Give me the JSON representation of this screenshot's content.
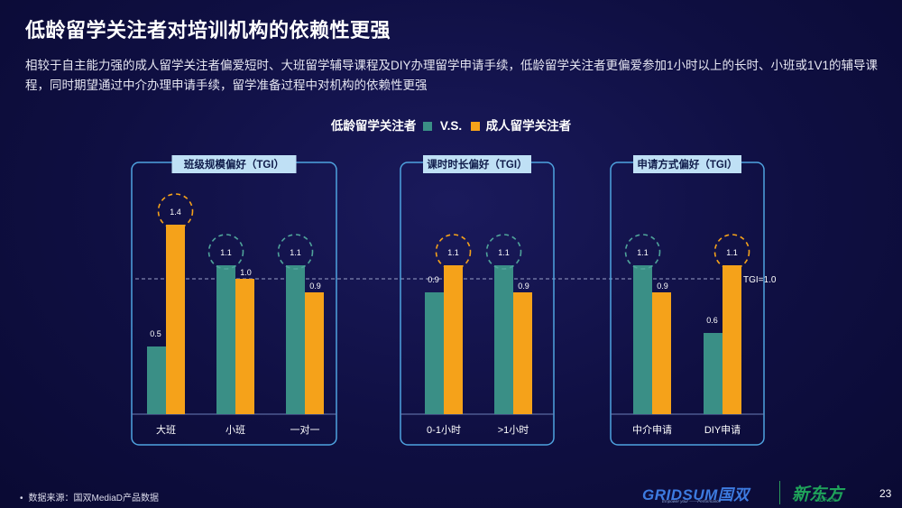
{
  "title": "低龄留学关注者对培训机构的依赖性更强",
  "subtitle": "相较于自主能力强的成人留学关注者偏爱短时、大班留学辅导课程及DIY办理留学申请手续，低龄留学关注者更偏爱参加1小时以上的长时、小班或1V1的辅导课程，同时期望通过中介办理申请手续，留学准备过程中对机构的依赖性更强",
  "legend": {
    "series_a": "低龄留学关注者",
    "vs": "V.S.",
    "series_b": "成人留学关注者"
  },
  "colors": {
    "series_a": "#3a8f86",
    "series_b": "#f5a21a",
    "box": "#4fa3e0",
    "box_label_bg": "#bfe0f5",
    "box_label_text": "#0f1b4a"
  },
  "chart_data": {
    "type": "bar",
    "series_names": [
      "低龄留学关注者",
      "成人留学关注者"
    ],
    "ylim": [
      0,
      1.8
    ],
    "reference_line": {
      "value": 1.0,
      "label": "TGI=1.0"
    },
    "groups": [
      {
        "label": "班级规模偏好（TGI）",
        "categories": [
          "大班",
          "小班",
          "一对一"
        ],
        "series": [
          {
            "name": "低龄留学关注者",
            "values": [
              0.5,
              1.1,
              1.1
            ],
            "labels": [
              "0.5",
              "1.1",
              "1.1"
            ]
          },
          {
            "name": "成人留学关注者",
            "values": [
              1.4,
              1.0,
              0.9
            ],
            "labels": [
              "1.4",
              "1.0",
              "0.9"
            ]
          }
        ],
        "highlight": [
          1,
          0,
          0
        ]
      },
      {
        "label": "课时时长偏好（TGI）",
        "categories": [
          "0-1小时",
          ">1小时"
        ],
        "series": [
          {
            "name": "低龄留学关注者",
            "values": [
              0.9,
              1.1
            ],
            "labels": [
              "0.9",
              "1.1"
            ]
          },
          {
            "name": "成人留学关注者",
            "values": [
              1.1,
              0.9
            ],
            "labels": [
              "1.1",
              "0.9"
            ]
          }
        ],
        "highlight": [
          1,
          0
        ]
      },
      {
        "label": "申请方式偏好（TGI）",
        "categories": [
          "中介申请",
          "DIY申请"
        ],
        "series": [
          {
            "name": "低龄留学关注者",
            "values": [
              1.1,
              0.6
            ],
            "labels": [
              "1.1",
              "0.6"
            ]
          },
          {
            "name": "成人留学关注者",
            "values": [
              0.9,
              1.1
            ],
            "labels": [
              "0.9",
              "1.1"
            ]
          }
        ],
        "highlight": [
          0,
          1
        ]
      }
    ]
  },
  "footer": {
    "bullet": "•",
    "source": "数据来源：国双MediaD产品数据",
    "brand_gridsum": "GRIDSUM国双",
    "brand_tagline": "Empower your ——Performance",
    "brand_xdf": "新东方",
    "brand_xdf_url": "XDF.CN",
    "page_number": "23"
  }
}
